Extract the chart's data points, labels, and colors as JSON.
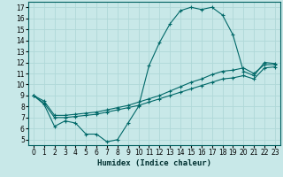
{
  "xlabel": "Humidex (Indice chaleur)",
  "bg_color": "#c8e8e8",
  "grid_color": "#b0d8d8",
  "line_color": "#006868",
  "xlim": [
    -0.5,
    23.5
  ],
  "ylim": [
    4.5,
    17.5
  ],
  "xticks": [
    0,
    1,
    2,
    3,
    4,
    5,
    6,
    7,
    8,
    9,
    10,
    11,
    12,
    13,
    14,
    15,
    16,
    17,
    18,
    19,
    20,
    21,
    22,
    23
  ],
  "yticks": [
    5,
    6,
    7,
    8,
    9,
    10,
    11,
    12,
    13,
    14,
    15,
    16,
    17
  ],
  "series1_x": [
    0,
    1,
    2,
    3,
    4,
    5,
    6,
    7,
    8,
    9,
    10,
    11,
    12,
    13,
    14,
    15,
    16,
    17,
    18,
    19,
    20,
    21,
    22,
    23
  ],
  "series1_y": [
    9.0,
    8.2,
    6.2,
    6.7,
    6.5,
    5.5,
    5.5,
    4.8,
    5.0,
    6.5,
    8.0,
    11.7,
    13.8,
    15.5,
    16.7,
    17.0,
    16.8,
    17.0,
    16.3,
    14.5,
    11.2,
    10.8,
    12.0,
    11.9
  ],
  "series2_x": [
    0,
    1,
    2,
    3,
    4,
    5,
    6,
    7,
    8,
    9,
    10,
    11,
    12,
    13,
    14,
    15,
    16,
    17,
    18,
    19,
    20,
    21,
    22,
    23
  ],
  "series2_y": [
    9.0,
    8.5,
    7.2,
    7.2,
    7.3,
    7.4,
    7.5,
    7.7,
    7.9,
    8.1,
    8.4,
    8.7,
    9.0,
    9.4,
    9.8,
    10.2,
    10.5,
    10.9,
    11.2,
    11.3,
    11.5,
    11.0,
    11.8,
    11.8
  ],
  "series3_x": [
    0,
    1,
    2,
    3,
    4,
    5,
    6,
    7,
    8,
    9,
    10,
    11,
    12,
    13,
    14,
    15,
    16,
    17,
    18,
    19,
    20,
    21,
    22,
    23
  ],
  "series3_y": [
    9.0,
    8.3,
    7.0,
    7.0,
    7.1,
    7.2,
    7.3,
    7.5,
    7.7,
    7.9,
    8.1,
    8.4,
    8.7,
    9.0,
    9.3,
    9.6,
    9.9,
    10.2,
    10.5,
    10.6,
    10.8,
    10.5,
    11.5,
    11.6
  ]
}
